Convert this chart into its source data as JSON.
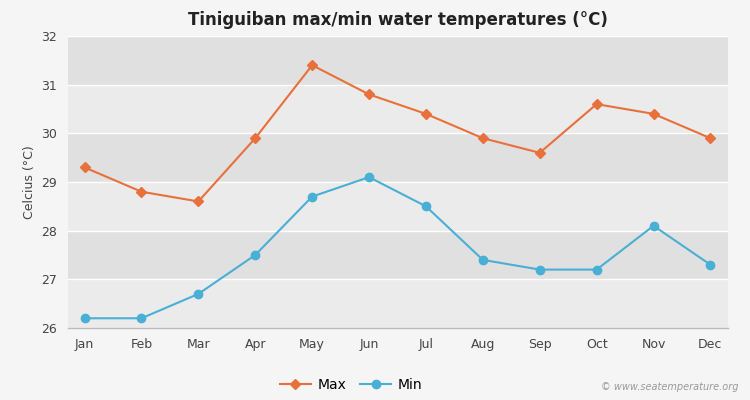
{
  "title": "Tiniguiban max/min water temperatures (°C)",
  "ylabel": "Celcius (°C)",
  "months": [
    "Jan",
    "Feb",
    "Mar",
    "Apr",
    "May",
    "Jun",
    "Jul",
    "Aug",
    "Sep",
    "Oct",
    "Nov",
    "Dec"
  ],
  "max_values": [
    29.3,
    28.8,
    28.6,
    29.9,
    31.4,
    30.8,
    30.4,
    29.9,
    29.6,
    30.6,
    30.4,
    29.9
  ],
  "min_values": [
    26.2,
    26.2,
    26.7,
    27.5,
    28.7,
    29.1,
    28.5,
    27.4,
    27.2,
    27.2,
    28.1,
    27.3
  ],
  "max_color": "#e8703a",
  "min_color": "#4aafd5",
  "fig_bg_color": "#f5f5f5",
  "band_colors": [
    "#ebebeb",
    "#e0e0e0"
  ],
  "grid_color": "#ffffff",
  "ylim_min": 26.0,
  "ylim_max": 32.0,
  "yticks": [
    26,
    27,
    28,
    29,
    30,
    31,
    32
  ],
  "watermark": "© www.seatemperature.org",
  "legend_labels": [
    "Max",
    "Min"
  ]
}
